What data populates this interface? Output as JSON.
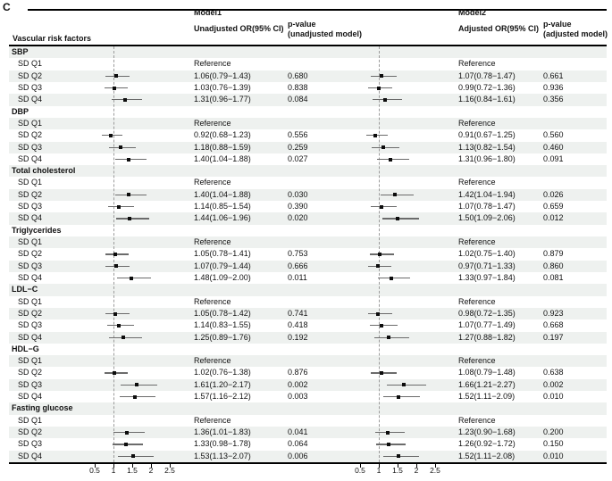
{
  "panel_label": "C",
  "header": {
    "risk_factor_col": "Vascular risk factors",
    "model1": {
      "title": "Model1",
      "or_col": "Unadjusted OR(95% CI)",
      "p_line1": "p-value",
      "p_line2": "(unadjusted model)"
    },
    "model2": {
      "title": "Model2",
      "or_col": "Adjusted OR(95% CI)",
      "p_line1": "p-value",
      "p_line2": "(adjusted model)"
    }
  },
  "axis": {
    "tick_labels": [
      "0.5",
      "1",
      "1.5",
      "2",
      "2.5"
    ],
    "tick_values": [
      0.5,
      1,
      1.5,
      2,
      2.5
    ],
    "reference_value": 1
  },
  "colors": {
    "stripe": "#eef1ef",
    "ci_line": "#6b6b6b",
    "marker": "#0d0d0d",
    "dash": "#9b9b9b",
    "text": "#111111"
  },
  "chart_data": {
    "type": "forest",
    "title": "",
    "x_range": [
      0.5,
      2.5
    ],
    "reference_or": 1,
    "legend": [
      "Model1 Unadjusted OR(95% CI)",
      "Model2 Adjusted OR(95% CI)"
    ],
    "sections": [
      {
        "name": "SBP",
        "rows": [
          {
            "label": "SD Q1",
            "m1": {
              "text": "Reference"
            },
            "m2": {
              "text": "Reference"
            }
          },
          {
            "label": "SD Q2",
            "m1": {
              "text": "1.06(0.79−1.43)",
              "p": "0.680",
              "est": 1.06,
              "lo": 0.79,
              "hi": 1.43
            },
            "m2": {
              "text": "1.07(0.78−1.47)",
              "p": "0.661",
              "est": 1.07,
              "lo": 0.78,
              "hi": 1.47
            }
          },
          {
            "label": "SD Q3",
            "m1": {
              "text": "1.03(0.76−1.39)",
              "p": "0.838",
              "est": 1.03,
              "lo": 0.76,
              "hi": 1.39
            },
            "m2": {
              "text": "0.99(0.72−1.36)",
              "p": "0.936",
              "est": 0.99,
              "lo": 0.72,
              "hi": 1.36
            }
          },
          {
            "label": "SD Q4",
            "m1": {
              "text": "1.31(0.96−1.77)",
              "p": "0.084",
              "est": 1.31,
              "lo": 0.96,
              "hi": 1.77
            },
            "m2": {
              "text": "1.16(0.84−1.61)",
              "p": "0.356",
              "est": 1.16,
              "lo": 0.84,
              "hi": 1.61
            }
          }
        ]
      },
      {
        "name": "DBP",
        "rows": [
          {
            "label": "SD Q1",
            "m1": {
              "text": "Reference"
            },
            "m2": {
              "text": "Reference"
            }
          },
          {
            "label": "SD Q2",
            "m1": {
              "text": "0.92(0.68−1.23)",
              "p": "0.556",
              "est": 0.92,
              "lo": 0.68,
              "hi": 1.23
            },
            "m2": {
              "text": "0.91(0.67−1.25)",
              "p": "0.560",
              "est": 0.91,
              "lo": 0.67,
              "hi": 1.25
            }
          },
          {
            "label": "SD Q3",
            "m1": {
              "text": "1.18(0.88−1.59)",
              "p": "0.259",
              "est": 1.18,
              "lo": 0.88,
              "hi": 1.59
            },
            "m2": {
              "text": "1.13(0.82−1.54)",
              "p": "0.460",
              "est": 1.13,
              "lo": 0.82,
              "hi": 1.54
            }
          },
          {
            "label": "SD Q4",
            "m1": {
              "text": "1.40(1.04−1.88)",
              "p": "0.027",
              "est": 1.4,
              "lo": 1.04,
              "hi": 1.88
            },
            "m2": {
              "text": "1.31(0.96−1.80)",
              "p": "0.091",
              "est": 1.31,
              "lo": 0.96,
              "hi": 1.8
            }
          }
        ]
      },
      {
        "name": "Total cholesterol",
        "rows": [
          {
            "label": "SD Q1",
            "m1": {
              "text": "Reference"
            },
            "m2": {
              "text": "Reference"
            }
          },
          {
            "label": "SD Q2",
            "m1": {
              "text": "1.40(1.04−1.88)",
              "p": "0.030",
              "est": 1.4,
              "lo": 1.04,
              "hi": 1.88
            },
            "m2": {
              "text": "1.42(1.04−1.94)",
              "p": "0.026",
              "est": 1.42,
              "lo": 1.04,
              "hi": 1.94
            }
          },
          {
            "label": "SD Q3",
            "m1": {
              "text": "1.14(0.85−1.54)",
              "p": "0.390",
              "est": 1.14,
              "lo": 0.85,
              "hi": 1.54
            },
            "m2": {
              "text": "1.07(0.78−1.47)",
              "p": "0.659",
              "est": 1.07,
              "lo": 0.78,
              "hi": 1.47
            }
          },
          {
            "label": "SD Q4",
            "m1": {
              "text": "1.44(1.06−1.96)",
              "p": "0.020",
              "est": 1.44,
              "lo": 1.06,
              "hi": 1.96
            },
            "m2": {
              "text": "1.50(1.09−2.06)",
              "p": "0.012",
              "est": 1.5,
              "lo": 1.09,
              "hi": 2.06
            }
          }
        ]
      },
      {
        "name": "Triglycerides",
        "rows": [
          {
            "label": "SD Q1",
            "m1": {
              "text": "Reference"
            },
            "m2": {
              "text": "Reference"
            }
          },
          {
            "label": "SD Q2",
            "m1": {
              "text": "1.05(0.78−1.41)",
              "p": "0.753",
              "est": 1.05,
              "lo": 0.78,
              "hi": 1.41
            },
            "m2": {
              "text": "1.02(0.75−1.40)",
              "p": "0.879",
              "est": 1.02,
              "lo": 0.75,
              "hi": 1.4
            }
          },
          {
            "label": "SD Q3",
            "m1": {
              "text": "1.07(0.79−1.44)",
              "p": "0.666",
              "est": 1.07,
              "lo": 0.79,
              "hi": 1.44
            },
            "m2": {
              "text": "0.97(0.71−1.33)",
              "p": "0.860",
              "est": 0.97,
              "lo": 0.71,
              "hi": 1.33
            }
          },
          {
            "label": "SD Q4",
            "m1": {
              "text": "1.48(1.09−2.00)",
              "p": "0.011",
              "est": 1.48,
              "lo": 1.09,
              "hi": 2.0
            },
            "m2": {
              "text": "1.33(0.97−1.84)",
              "p": "0.081",
              "est": 1.33,
              "lo": 0.97,
              "hi": 1.84
            }
          }
        ]
      },
      {
        "name": "LDL−C",
        "rows": [
          {
            "label": "SD Q1",
            "m1": {
              "text": "Reference"
            },
            "m2": {
              "text": "Reference"
            }
          },
          {
            "label": "SD Q2",
            "m1": {
              "text": "1.05(0.78−1.42)",
              "p": "0.741",
              "est": 1.05,
              "lo": 0.78,
              "hi": 1.42
            },
            "m2": {
              "text": "0.98(0.72−1.35)",
              "p": "0.923",
              "est": 0.98,
              "lo": 0.72,
              "hi": 1.35
            }
          },
          {
            "label": "SD Q3",
            "m1": {
              "text": "1.14(0.83−1.55)",
              "p": "0.418",
              "est": 1.14,
              "lo": 0.83,
              "hi": 1.55
            },
            "m2": {
              "text": "1.07(0.77−1.49)",
              "p": "0.668",
              "est": 1.07,
              "lo": 0.77,
              "hi": 1.49
            }
          },
          {
            "label": "SD Q4",
            "m1": {
              "text": "1.25(0.89−1.76)",
              "p": "0.192",
              "est": 1.25,
              "lo": 0.89,
              "hi": 1.76
            },
            "m2": {
              "text": "1.27(0.88−1.82)",
              "p": "0.197",
              "est": 1.27,
              "lo": 0.88,
              "hi": 1.82
            }
          }
        ]
      },
      {
        "name": "HDL−G",
        "rows": [
          {
            "label": "SD Q1",
            "m1": {
              "text": "Reference"
            },
            "m2": {
              "text": "Reference"
            }
          },
          {
            "label": "SD Q2",
            "m1": {
              "text": "1.02(0.76−1.38)",
              "p": "0.876",
              "est": 1.02,
              "lo": 0.76,
              "hi": 1.38
            },
            "m2": {
              "text": "1.08(0.79−1.48)",
              "p": "0.638",
              "est": 1.08,
              "lo": 0.79,
              "hi": 1.48
            }
          },
          {
            "label": "SD Q3",
            "m1": {
              "text": "1.61(1.20−2.17)",
              "p": "0.002",
              "est": 1.61,
              "lo": 1.2,
              "hi": 2.17
            },
            "m2": {
              "text": "1.66(1.21−2.27)",
              "p": "0.002",
              "est": 1.66,
              "lo": 1.21,
              "hi": 2.27
            }
          },
          {
            "label": "SD Q4",
            "m1": {
              "text": "1.57(1.16−2.12)",
              "p": "0.003",
              "est": 1.57,
              "lo": 1.16,
              "hi": 2.12
            },
            "m2": {
              "text": "1.52(1.11−2.09)",
              "p": "0.010",
              "est": 1.52,
              "lo": 1.11,
              "hi": 2.09
            }
          }
        ]
      },
      {
        "name": "Fasting glucose",
        "rows": [
          {
            "label": "SD Q1",
            "m1": {
              "text": "Reference"
            },
            "m2": {
              "text": "Reference"
            }
          },
          {
            "label": "SD Q2",
            "m1": {
              "text": "1.36(1.01−1.83)",
              "p": "0.041",
              "est": 1.36,
              "lo": 1.01,
              "hi": 1.83
            },
            "m2": {
              "text": "1.23(0.90−1.68)",
              "p": "0.200",
              "est": 1.23,
              "lo": 0.9,
              "hi": 1.68
            }
          },
          {
            "label": "SD Q3",
            "m1": {
              "text": "1.33(0.98−1.78)",
              "p": "0.064",
              "est": 1.33,
              "lo": 0.98,
              "hi": 1.78
            },
            "m2": {
              "text": "1.26(0.92−1.72)",
              "p": "0.150",
              "est": 1.26,
              "lo": 0.92,
              "hi": 1.72
            }
          },
          {
            "label": "SD Q4",
            "m1": {
              "text": "1.53(1.13−2.07)",
              "p": "0.006",
              "est": 1.53,
              "lo": 1.13,
              "hi": 2.07
            },
            "m2": {
              "text": "1.52(1.11−2.08)",
              "p": "0.010",
              "est": 1.52,
              "lo": 1.11,
              "hi": 2.08
            }
          }
        ]
      }
    ]
  }
}
